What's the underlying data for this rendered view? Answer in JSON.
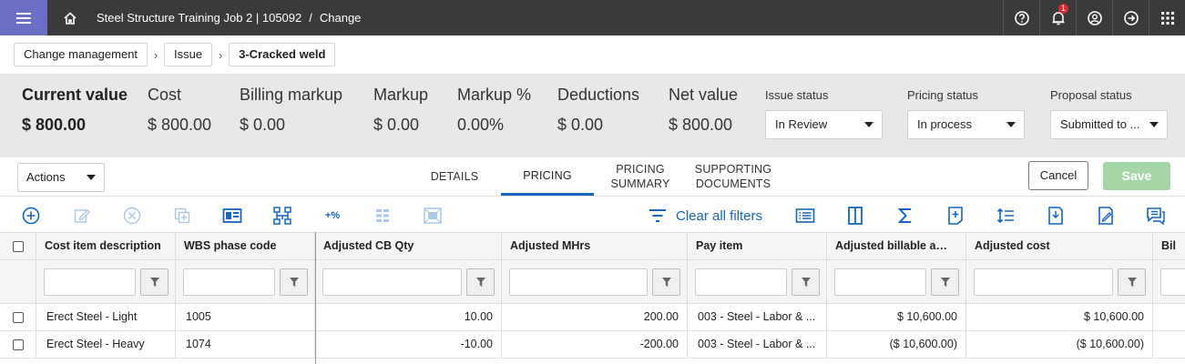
{
  "header": {
    "project": "Steel Structure Training Job 2 | 105092",
    "separator": "/",
    "page": "Change",
    "notification_count": "1"
  },
  "breadcrumb": {
    "items": [
      "Change management",
      "Issue",
      "3-Cracked weld"
    ]
  },
  "summary": {
    "current_value": {
      "label": "Current value",
      "value": "$ 800.00"
    },
    "cost": {
      "label": "Cost",
      "value": "$ 800.00"
    },
    "billing_markup": {
      "label": "Billing markup",
      "value": "$ 0.00"
    },
    "markup": {
      "label": "Markup",
      "value": "$ 0.00"
    },
    "markup_pct": {
      "label": "Markup %",
      "value": "0.00%"
    },
    "deductions": {
      "label": "Deductions",
      "value": "$ 0.00"
    },
    "net_value": {
      "label": "Net value",
      "value": "$ 800.00"
    },
    "issue_status": {
      "label": "Issue status",
      "value": "In Review"
    },
    "pricing_status": {
      "label": "Pricing status",
      "value": "In process"
    },
    "proposal_status": {
      "label": "Proposal status",
      "value": "Submitted to ..."
    }
  },
  "actions_label": "Actions",
  "tabs": {
    "details": "DETAILS",
    "pricing": "PRICING",
    "pricing_summary_1": "PRICING",
    "pricing_summary_2": "SUMMARY",
    "supporting_1": "SUPPORTING",
    "supporting_2": "DOCUMENTS"
  },
  "buttons": {
    "cancel": "Cancel",
    "save": "Save"
  },
  "toolbar": {
    "plus_percent": "+%",
    "clear_filters": "Clear all filters"
  },
  "grid": {
    "columns": [
      "Cost item description",
      "WBS phase code",
      "Adjusted CB Qty",
      "Adjusted MHrs",
      "Pay item",
      "Adjusted billable amou...",
      "Adjusted cost",
      "Bil"
    ],
    "rows": [
      [
        "Erect Steel - Light",
        "1005",
        "10.00",
        "200.00",
        "003 - Steel - Labor & ...",
        "$ 10,600.00",
        "$ 10,600.00"
      ],
      [
        "Erect Steel - Heavy",
        "1074",
        "-10.00",
        "-200.00",
        "003 - Steel - Labor & ...",
        "($ 10,600.00)",
        "($ 10,600.00)"
      ]
    ]
  },
  "colors": {
    "accent": "#1565c0",
    "menu": "#6b6fc4",
    "topbar": "#3a3a3a",
    "save_disabled": "#a5d6a7"
  }
}
